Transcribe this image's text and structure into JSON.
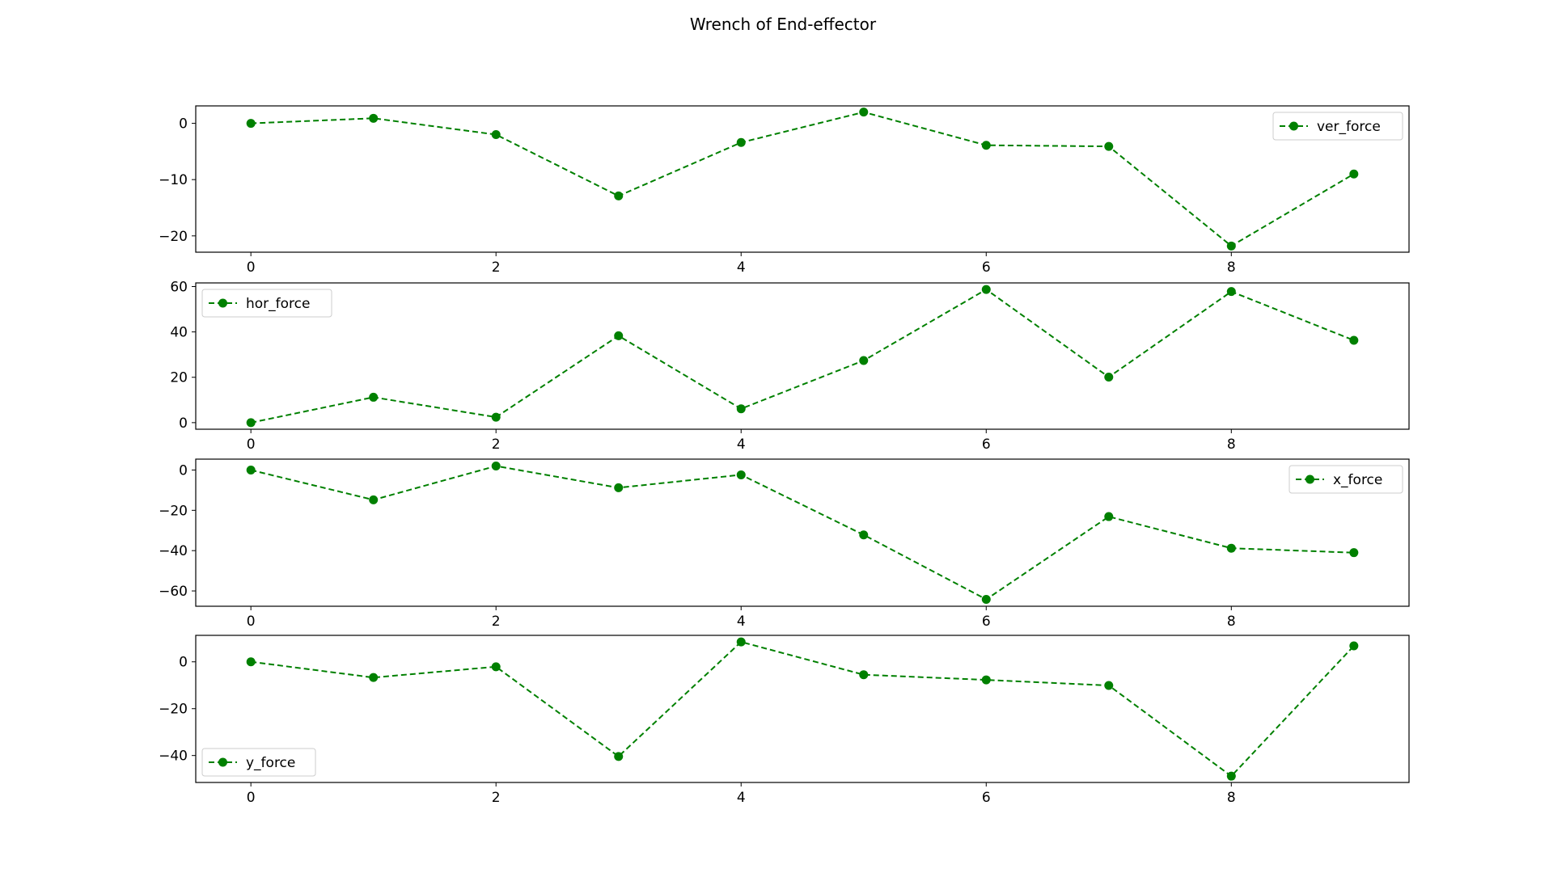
{
  "figure": {
    "title": "Wrench of End-effector"
  },
  "colors": {
    "series": "#008000",
    "axes": "#000000",
    "legend_border": "#cccccc"
  },
  "chart_data": [
    {
      "type": "line",
      "x": [
        0,
        1,
        2,
        3,
        4,
        5,
        6,
        7,
        8,
        9
      ],
      "series": [
        {
          "name": "ver_force",
          "values": [
            0,
            0.9,
            -2,
            -12.9,
            -3.4,
            2,
            -3.9,
            -4.1,
            -21.8,
            -9
          ]
        }
      ],
      "xlim": [
        -0.45,
        9.45
      ],
      "ylim": [
        -22.9,
        3.1
      ],
      "xticks": [
        0,
        2,
        4,
        6,
        8
      ],
      "yticks": [
        0,
        -10,
        -20
      ],
      "ytick_labels": [
        "0",
        "−10",
        "−20"
      ],
      "line_style": "dashed",
      "marker": "circle",
      "legend_position": "top-right"
    },
    {
      "type": "line",
      "x": [
        0,
        1,
        2,
        3,
        4,
        5,
        6,
        7,
        8,
        9
      ],
      "series": [
        {
          "name": "hor_force",
          "values": [
            0,
            11.2,
            2.4,
            38.3,
            6.1,
            27.4,
            58.7,
            20.1,
            57.8,
            36.3
          ]
        }
      ],
      "xlim": [
        -0.45,
        9.45
      ],
      "ylim": [
        -2.9,
        61.6
      ],
      "xticks": [
        0,
        2,
        4,
        6,
        8
      ],
      "yticks": [
        0,
        20,
        40,
        60
      ],
      "ytick_labels": [
        "0",
        "20",
        "40",
        "60"
      ],
      "line_style": "dashed",
      "marker": "circle",
      "legend_position": "top-left"
    },
    {
      "type": "line",
      "x": [
        0,
        1,
        2,
        3,
        4,
        5,
        6,
        7,
        8,
        9
      ],
      "series": [
        {
          "name": "x_force",
          "values": [
            0,
            -14.8,
            2,
            -8.8,
            -2.4,
            -32.2,
            -64.2,
            -23.1,
            -38.8,
            -41
          ]
        }
      ],
      "xlim": [
        -0.45,
        9.45
      ],
      "ylim": [
        -67.6,
        5.4
      ],
      "xticks": [
        0,
        2,
        4,
        6,
        8
      ],
      "yticks": [
        0,
        -20,
        -40,
        -60
      ],
      "ytick_labels": [
        "0",
        "−20",
        "−40",
        "−60"
      ],
      "line_style": "dashed",
      "marker": "circle",
      "legend_position": "top-right"
    },
    {
      "type": "line",
      "x": [
        0,
        1,
        2,
        3,
        4,
        5,
        6,
        7,
        8,
        9
      ],
      "series": [
        {
          "name": "y_force",
          "values": [
            0,
            -6.7,
            -2.1,
            -40.4,
            8.5,
            -5.5,
            -7.7,
            -10.1,
            -48.8,
            6.8
          ]
        }
      ],
      "xlim": [
        -0.45,
        9.45
      ],
      "ylim": [
        -51.5,
        11.3
      ],
      "xticks": [
        0,
        2,
        4,
        6,
        8
      ],
      "yticks": [
        0,
        -20,
        -40
      ],
      "ytick_labels": [
        "0",
        "−20",
        "−40"
      ],
      "line_style": "dashed",
      "marker": "circle",
      "legend_position": "bottom-left"
    }
  ]
}
